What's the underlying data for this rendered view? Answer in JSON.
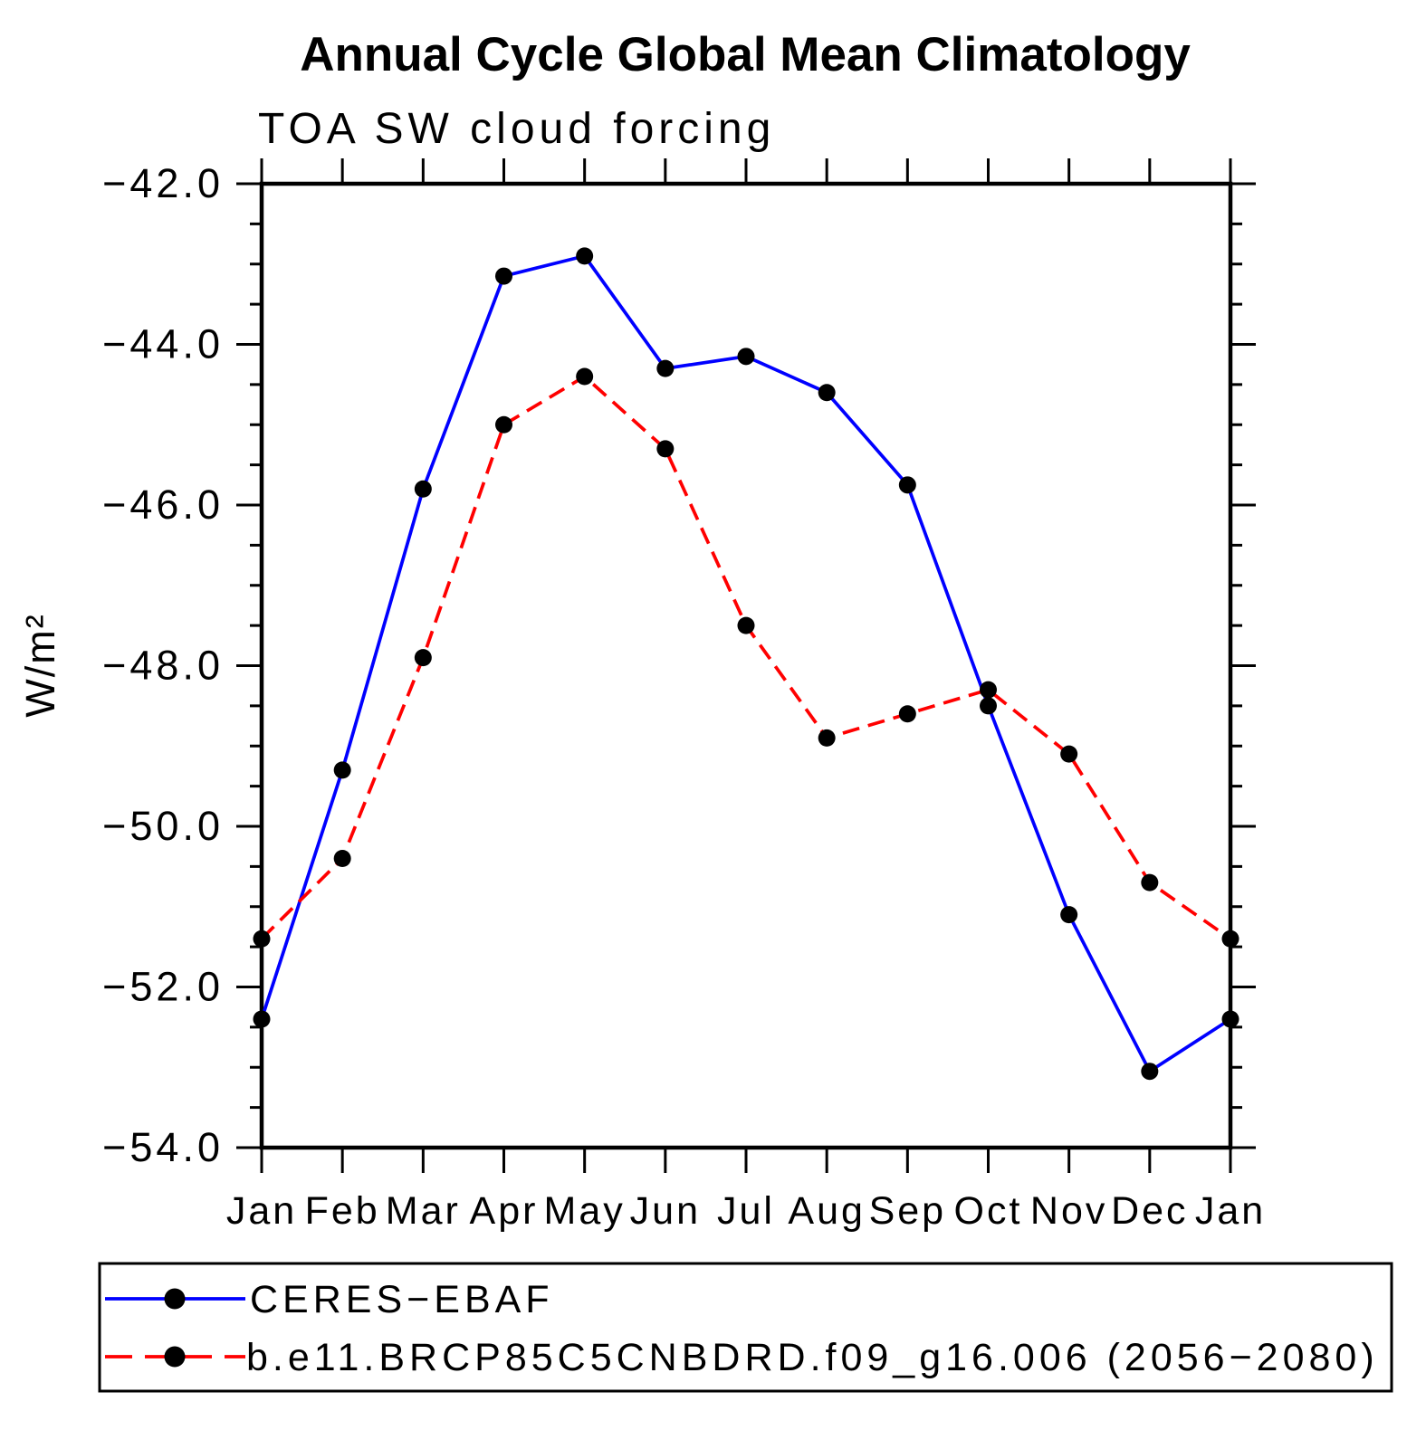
{
  "chart_data": {
    "type": "line",
    "title": "Annual Cycle Global Mean Climatology",
    "subtitle": "TOA SW cloud forcing",
    "ylabel": "W/m²",
    "xlabel": "",
    "categories": [
      "Jan",
      "Feb",
      "Mar",
      "Apr",
      "May",
      "Jun",
      "Jul",
      "Aug",
      "Sep",
      "Oct",
      "Nov",
      "Dec",
      "Jan"
    ],
    "ylim": [
      -54.0,
      -42.0
    ],
    "ytick_major_step": 2.0,
    "ytick_minor_step": 0.5,
    "ytick_labels": [
      "−42.0",
      "−44.0",
      "−46.0",
      "−48.0",
      "−50.0",
      "−52.0",
      "−54.0"
    ],
    "grid": false,
    "legend_position": "bottom",
    "marker_color": "#000000",
    "series": [
      {
        "name": "CERES−EBAF",
        "color": "#0000ff",
        "line_style": "solid",
        "marker": "filled-circle",
        "values": [
          -52.4,
          -49.3,
          -45.8,
          -43.15,
          -42.9,
          -44.3,
          -44.15,
          -44.6,
          -45.75,
          -48.5,
          -51.1,
          -53.05,
          -52.4
        ]
      },
      {
        "name": "b.e11.BRCP85C5CNBDRD.f09_g16.006 (2056−2080)",
        "color": "#ff0000",
        "line_style": "dashed",
        "marker": "filled-circle",
        "values": [
          -51.4,
          -50.4,
          -47.9,
          -45.0,
          -44.4,
          -45.3,
          -47.5,
          -48.9,
          -48.6,
          -48.3,
          -49.1,
          -50.7,
          -51.4
        ]
      }
    ]
  }
}
